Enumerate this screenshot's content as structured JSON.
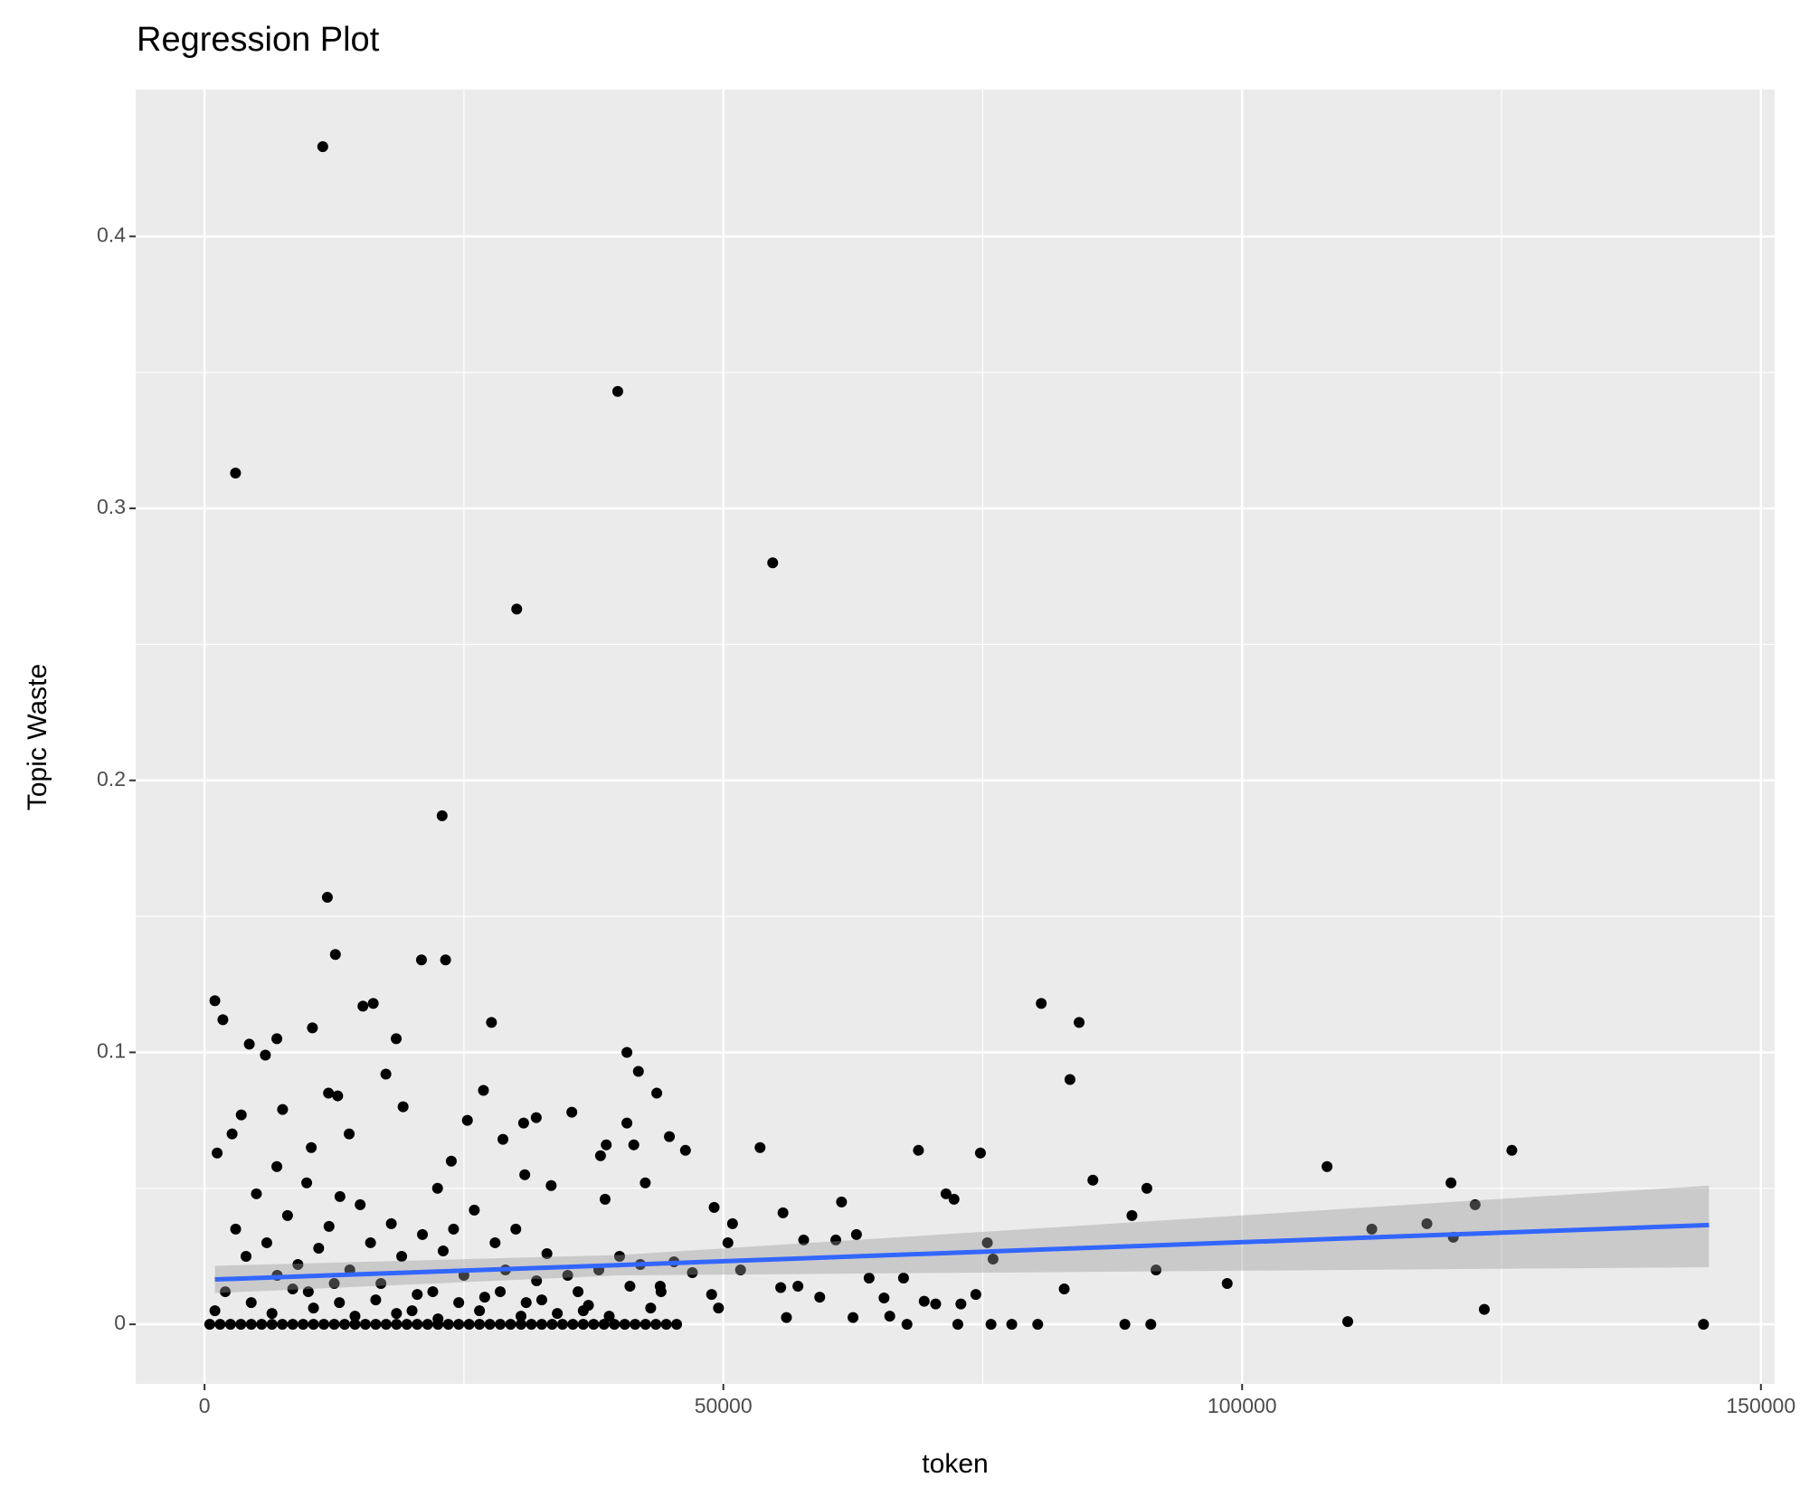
{
  "chart_data": {
    "type": "scatter",
    "title": "Regression Plot",
    "x_label": "token",
    "y_label": "Topic Waste",
    "xlim": [
      -6637,
      151327
    ],
    "ylim": [
      -0.0219,
      0.454
    ],
    "xticks": [
      0,
      50000,
      100000,
      150000
    ],
    "yticks": [
      0,
      0.1,
      0.2,
      0.3,
      0.4
    ],
    "grid": true,
    "minor_grid": true,
    "point_color": "#000000",
    "x": [
      11394,
      39823,
      2987,
      54757,
      30088,
      22898,
      11836,
      12611,
      20907,
      23230,
      996,
      1770,
      80642,
      84292,
      27655,
      10398,
      6969,
      18473,
      4314,
      5863,
      40708,
      15265,
      16261,
      83407,
      41814,
      17478,
      26881,
      11947,
      43584,
      12832,
      19137,
      7522,
      3540,
      35398,
      31969,
      30752,
      40708,
      25332,
      2655,
      13938,
      44801,
      28760,
      1217,
      10288,
      38717,
      41372,
      46350,
      53540,
      68805,
      74779,
      125996,
      38164,
      23783,
      108186,
      6969,
      85619,
      42478,
      120133,
      9845,
      30863,
      33407,
      90819,
      22456,
      13053,
      71460,
      72234,
      122456,
      61394,
      38606,
      49115,
      110177,
      98562,
      91704,
      89381,
      117810,
      112500,
      120354,
      123341,
      144469,
      88700,
      91200,
      80300,
      77800,
      75800,
      72600,
      67700,
      82854,
      75443,
      75996,
      74336,
      72898,
      70465,
      69358,
      67367,
      62832,
      60841,
      64049,
      57743,
      55752,
      51659,
      50885,
      50442,
      59292,
      57190,
      55531,
      65487,
      66040,
      62500,
      56084,
      47014,
      45243,
      48872,
      49535,
      43916,
      3000,
      4000,
      5000,
      6000,
      7000,
      8000,
      9000,
      10000,
      11000,
      12000,
      13000,
      14000,
      15000,
      16000,
      17000,
      18000,
      19000,
      20000,
      21000,
      22000,
      23000,
      24000,
      25000,
      26000,
      27000,
      28000,
      29000,
      30000,
      31000,
      32000,
      33000,
      34000,
      35000,
      36000,
      37000,
      38000,
      39000,
      40000,
      41000,
      42000,
      43000,
      44000,
      2000,
      4500,
      6500,
      8500,
      10500,
      12500,
      14500,
      16500,
      18500,
      20500,
      22500,
      24500,
      26500,
      28500,
      30500,
      32500,
      1000,
      36500,
      500,
      1500,
      2500,
      3500,
      4500,
      5500,
      6500,
      7500,
      8500,
      9500,
      10500,
      11500,
      12500,
      13500,
      14500,
      15500,
      16500,
      17500,
      18500,
      19500,
      20500,
      21500,
      22500,
      23500,
      24500,
      25500,
      26500,
      27500,
      28500,
      29500,
      30500,
      31500,
      32500,
      33500,
      34500,
      35500,
      36500,
      37500,
      38500,
      39500,
      40500,
      41500,
      42500,
      43500,
      44500,
      45500
    ],
    "y": [
      0.433,
      0.343,
      0.313,
      0.28,
      0.263,
      0.187,
      0.157,
      0.136,
      0.134,
      0.134,
      0.119,
      0.112,
      0.118,
      0.111,
      0.111,
      0.109,
      0.105,
      0.105,
      0.103,
      0.099,
      0.1,
      0.117,
      0.118,
      0.09,
      0.093,
      0.092,
      0.086,
      0.085,
      0.085,
      0.084,
      0.08,
      0.079,
      0.077,
      0.078,
      0.076,
      0.074,
      0.074,
      0.075,
      0.07,
      0.07,
      0.069,
      0.068,
      0.063,
      0.065,
      0.066,
      0.066,
      0.064,
      0.065,
      0.064,
      0.063,
      0.064,
      0.062,
      0.06,
      0.058,
      0.058,
      0.053,
      0.052,
      0.052,
      0.052,
      0.055,
      0.051,
      0.05,
      0.05,
      0.047,
      0.048,
      0.046,
      0.044,
      0.045,
      0.046,
      0.043,
      0.001,
      0.015,
      0.02,
      0.04,
      0.037,
      0.035,
      0.032,
      0.0055,
      0,
      0,
      0,
      0,
      0,
      0,
      0,
      0,
      0.013,
      0.03,
      0.024,
      0.011,
      0.0075,
      0.0075,
      0.0085,
      0.017,
      0.033,
      0.031,
      0.017,
      0.031,
      0.041,
      0.02,
      0.037,
      0.03,
      0.01,
      0.014,
      0.0135,
      0.0097,
      0.003,
      0.0025,
      0.0025,
      0.019,
      0.023,
      0.011,
      0.006,
      0.014,
      0.035,
      0.025,
      0.048,
      0.03,
      0.018,
      0.04,
      0.022,
      0.012,
      0.028,
      0.036,
      0.008,
      0.02,
      0.044,
      0.03,
      0.015,
      0.037,
      0.025,
      0.005,
      0.033,
      0.012,
      0.027,
      0.035,
      0.018,
      0.042,
      0.01,
      0.03,
      0.02,
      0.035,
      0.008,
      0.016,
      0.026,
      0.004,
      0.018,
      0.012,
      0.007,
      0.02,
      0.003,
      0.025,
      0.014,
      0.022,
      0.006,
      0.012,
      0.012,
      0.008,
      0.004,
      0.013,
      0.006,
      0.015,
      0.003,
      0.009,
      0.004,
      0.011,
      0.002,
      0.008,
      0.005,
      0.012,
      0.003,
      0.009,
      0.005,
      0.005,
      0,
      0,
      0,
      0,
      0,
      0,
      0,
      0,
      0,
      0,
      0,
      0,
      0,
      0,
      0,
      0,
      0,
      0,
      0,
      0,
      0,
      0,
      0,
      0,
      0,
      0,
      0,
      0,
      0,
      0,
      0,
      0,
      0,
      0,
      0,
      0,
      0,
      0,
      0,
      0,
      0,
      0,
      0,
      0,
      0,
      0
    ],
    "fit": {
      "color": "#3366ff",
      "band_color": "#999999",
      "x": [
        1000,
        40000,
        145000
      ],
      "y": [
        0.0165,
        0.0218,
        0.0365
      ],
      "lower": [
        0.0115,
        0.018,
        0.021
      ],
      "upper": [
        0.0215,
        0.0255,
        0.051
      ]
    }
  }
}
